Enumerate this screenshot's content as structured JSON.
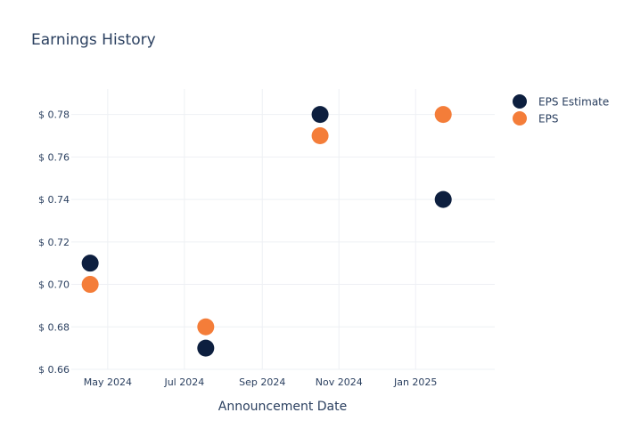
{
  "chart_data": {
    "type": "scatter",
    "title": "Earnings History",
    "xlabel": "Announcement Date",
    "ylabel": "",
    "x_axis": {
      "kind": "date",
      "ticks": [
        {
          "date": "2024-05-01",
          "label": "May 2024"
        },
        {
          "date": "2024-07-01",
          "label": "Jul 2024"
        },
        {
          "date": "2024-09-01",
          "label": "Sep 2024"
        },
        {
          "date": "2024-11-01",
          "label": "Nov 2024"
        },
        {
          "date": "2025-01-01",
          "label": "Jan 2025"
        }
      ],
      "range": [
        "2024-04-02",
        "2025-03-05"
      ]
    },
    "y_axis": {
      "ticks": [
        0.66,
        0.68,
        0.7,
        0.72,
        0.74,
        0.76,
        0.78
      ],
      "tick_prefix": "$",
      "decimals": 2,
      "range": [
        0.66,
        0.792
      ]
    },
    "grid": true,
    "legend_position": "top-right",
    "series": [
      {
        "name": "EPS Estimate",
        "color": "#0d1f3f",
        "points": [
          {
            "x": "2024-04-17",
            "y": 0.71
          },
          {
            "x": "2024-07-18",
            "y": 0.67
          },
          {
            "x": "2024-10-17",
            "y": 0.78
          },
          {
            "x": "2025-01-23",
            "y": 0.74
          }
        ]
      },
      {
        "name": "EPS",
        "color": "#f47d39",
        "points": [
          {
            "x": "2024-04-17",
            "y": 0.7
          },
          {
            "x": "2024-07-18",
            "y": 0.68
          },
          {
            "x": "2024-10-17",
            "y": 0.77
          },
          {
            "x": "2025-01-23",
            "y": 0.78
          }
        ]
      }
    ]
  }
}
